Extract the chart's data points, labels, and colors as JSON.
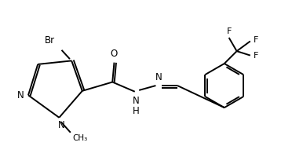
{
  "background": "#ffffff",
  "line_color": "#000000",
  "lw": 1.4,
  "fs": 8.5,
  "xlim": [
    0.0,
    8.5
  ],
  "ylim": [
    0.8,
    4.5
  ],
  "figsize": [
    3.86,
    2.0
  ],
  "dpi": 100
}
